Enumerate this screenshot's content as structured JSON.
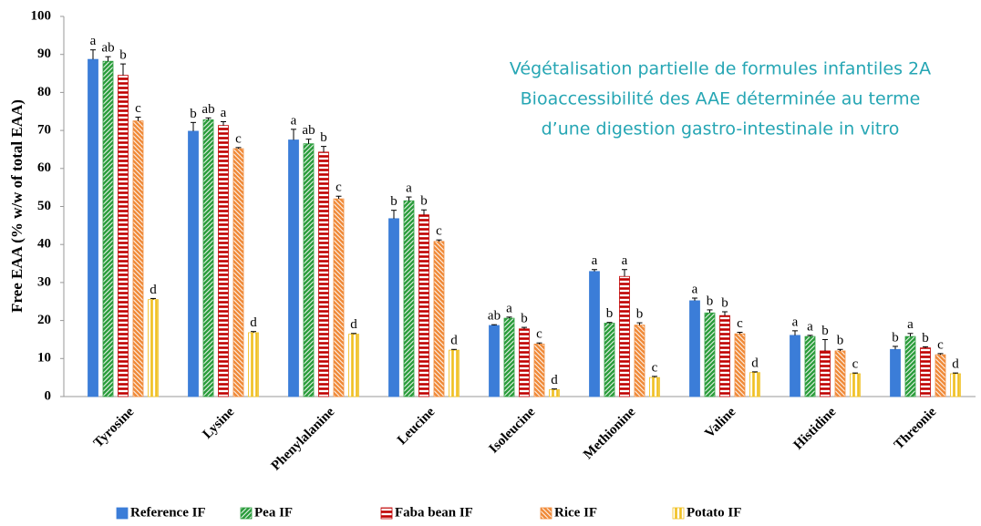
{
  "chart_data": {
    "type": "bar",
    "annotation": [
      "Végétalisation partielle de formules infantiles 2A",
      "Bioaccessibilité des AAE déterminée au terme",
      "d’une digestion gastro-intestinale in vitro"
    ],
    "ylabel": "Free EAA (% w/w of total EAA)",
    "categories": [
      "Tyrosine",
      "Lysine",
      "Phenylalanine",
      "Leucine",
      "Isoleucine",
      "Methionine",
      "Valine",
      "Histidine",
      "Threonie"
    ],
    "series": [
      {
        "name": "Reference IF",
        "color": "#3b7dd8",
        "pattern": "solid",
        "values": [
          88.7,
          69.8,
          67.5,
          46.8,
          18.7,
          32.9,
          25.2,
          16.1,
          12.4
        ],
        "errors": [
          2.5,
          2.3,
          2.8,
          2.2,
          0.2,
          0.5,
          0.7,
          1.2,
          0.8
        ],
        "significance": [
          "a",
          "b",
          "a",
          "b",
          "ab",
          "a",
          "a",
          "a",
          "b"
        ]
      },
      {
        "name": "Pea IF",
        "color": "#2e9e3f",
        "pattern": "diagonal",
        "values": [
          88.2,
          72.8,
          66.5,
          51.5,
          20.6,
          19.3,
          22.0,
          15.8,
          15.8
        ],
        "errors": [
          1.2,
          0.5,
          1.2,
          1.0,
          0.3,
          0.2,
          0.8,
          0.3,
          0.8
        ],
        "significance": [
          "ab",
          "ab",
          "ab",
          "a",
          "a",
          "b",
          "b",
          "a",
          "a"
        ]
      },
      {
        "name": "Faba bean IF",
        "color": "#c00000",
        "pattern": "horizontal",
        "values": [
          84.5,
          71.3,
          64.3,
          47.8,
          17.8,
          31.6,
          21.3,
          12.0,
          12.8
        ],
        "errors": [
          3.0,
          1.0,
          1.5,
          1.3,
          0.4,
          1.8,
          1.0,
          3.0,
          0.3
        ],
        "significance": [
          "b",
          "a",
          "b",
          "b",
          "b",
          "a",
          "b",
          "b",
          "b"
        ]
      },
      {
        "name": "Rice IF",
        "color": "#f08c3c",
        "pattern": "backdiagonal",
        "values": [
          72.5,
          65.2,
          52.0,
          40.8,
          13.8,
          18.8,
          16.5,
          12.0,
          11.0
        ],
        "errors": [
          1.0,
          0.3,
          0.7,
          0.4,
          0.3,
          0.6,
          0.4,
          0.4,
          0.3
        ],
        "significance": [
          "c",
          "c",
          "c",
          "c",
          "c",
          "b",
          "c",
          "b",
          "c"
        ]
      },
      {
        "name": "Potato IF",
        "color": "#f0c020",
        "pattern": "vertical",
        "values": [
          25.5,
          16.8,
          16.4,
          12.2,
          1.8,
          5.0,
          6.3,
          6.0,
          6.0
        ],
        "errors": [
          0.3,
          0.3,
          0.2,
          0.2,
          0.2,
          0.3,
          0.2,
          0.2,
          0.2
        ],
        "significance": [
          "d",
          "d",
          "d",
          "d",
          "d",
          "c",
          "d",
          "c",
          "d"
        ]
      }
    ],
    "ylim": [
      0,
      100
    ],
    "yticks": [
      0,
      10,
      20,
      30,
      40,
      50,
      60,
      70,
      80,
      90,
      100
    ],
    "grid": false,
    "legend": "bottom"
  }
}
